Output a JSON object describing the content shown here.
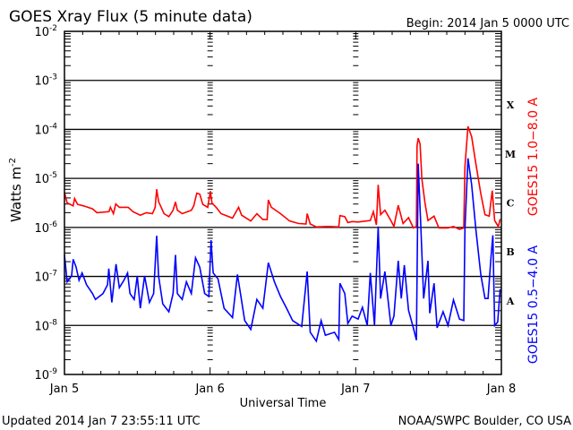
{
  "chart_data": {
    "type": "line",
    "title": "GOES Xray Flux (5 minute data)",
    "begin_label": "Begin:  2014 Jan 5 0000 UTC",
    "xlabel": "Universal Time",
    "ylabel": "Watts m",
    "ylabel_sup": "-2",
    "x_unit": "hours since 2014 Jan 5 00:00 UTC",
    "xlim": [
      0,
      72
    ],
    "ylim_log10": [
      -9,
      -2
    ],
    "y_scale": "log",
    "grid": "horizontal at each decade from 1e-8 to 1e-3",
    "x_ticks": [
      {
        "hour": 0,
        "label": "Jan 5"
      },
      {
        "hour": 24,
        "label": "Jan 6"
      },
      {
        "hour": 48,
        "label": "Jan 7"
      },
      {
        "hour": 72,
        "label": "Jan 8"
      }
    ],
    "y_ticks": [
      {
        "exp": -2,
        "base": "10",
        "sup": "-2"
      },
      {
        "exp": -3,
        "base": "10",
        "sup": "-3"
      },
      {
        "exp": -4,
        "base": "10",
        "sup": "-4"
      },
      {
        "exp": -5,
        "base": "10",
        "sup": "-5"
      },
      {
        "exp": -6,
        "base": "10",
        "sup": "-6"
      },
      {
        "exp": -7,
        "base": "10",
        "sup": "-7"
      },
      {
        "exp": -8,
        "base": "10",
        "sup": "-8"
      },
      {
        "exp": -9,
        "base": "10",
        "sup": "-9"
      }
    ],
    "flare_classes": [
      {
        "label": "X",
        "exp": -3.5
      },
      {
        "label": "M",
        "exp": -4.5
      },
      {
        "label": "C",
        "exp": -5.5
      },
      {
        "label": "B",
        "exp": -6.5
      },
      {
        "label": "A",
        "exp": -7.5
      }
    ],
    "series": [
      {
        "name": "GOES15 1.0-8.0 A",
        "label": "GOES15 1.0−8.0 A",
        "color": "#ff0000",
        "points_hour_log10flux": [
          [
            0,
            -5.29
          ],
          [
            0.44,
            -5.5
          ],
          [
            1.43,
            -5.56
          ],
          [
            1.67,
            -5.41
          ],
          [
            2.16,
            -5.53
          ],
          [
            3.15,
            -5.56
          ],
          [
            4.62,
            -5.62
          ],
          [
            5.36,
            -5.7
          ],
          [
            7.33,
            -5.68
          ],
          [
            7.57,
            -5.59
          ],
          [
            8.07,
            -5.72
          ],
          [
            8.46,
            -5.52
          ],
          [
            9.05,
            -5.59
          ],
          [
            10.5,
            -5.59
          ],
          [
            11.3,
            -5.68
          ],
          [
            12.5,
            -5.75
          ],
          [
            13.5,
            -5.7
          ],
          [
            14.5,
            -5.72
          ],
          [
            14.95,
            -5.59
          ],
          [
            15.2,
            -5.22
          ],
          [
            15.5,
            -5.47
          ],
          [
            16.4,
            -5.72
          ],
          [
            17.2,
            -5.78
          ],
          [
            17.9,
            -5.65
          ],
          [
            18.3,
            -5.48
          ],
          [
            18.6,
            -5.65
          ],
          [
            19.4,
            -5.72
          ],
          [
            20.9,
            -5.65
          ],
          [
            21.3,
            -5.56
          ],
          [
            21.8,
            -5.3
          ],
          [
            22.3,
            -5.32
          ],
          [
            22.8,
            -5.53
          ],
          [
            23.6,
            -5.59
          ],
          [
            24.05,
            -5.26
          ],
          [
            24.3,
            -5.5
          ],
          [
            25.0,
            -5.59
          ],
          [
            25.8,
            -5.72
          ],
          [
            27.7,
            -5.81
          ],
          [
            28.7,
            -5.59
          ],
          [
            29.2,
            -5.75
          ],
          [
            30.7,
            -5.87
          ],
          [
            31.7,
            -5.72
          ],
          [
            32.7,
            -5.84
          ],
          [
            33.4,
            -5.84
          ],
          [
            33.6,
            -5.44
          ],
          [
            34.1,
            -5.59
          ],
          [
            35.6,
            -5.72
          ],
          [
            37.1,
            -5.87
          ],
          [
            38.6,
            -5.92
          ],
          [
            39.8,
            -5.93
          ],
          [
            40.0,
            -5.72
          ],
          [
            40.5,
            -5.93
          ],
          [
            41.5,
            -5.99
          ],
          [
            43.5,
            -5.98
          ],
          [
            45.2,
            -5.99
          ],
          [
            45.4,
            -5.76
          ],
          [
            46.2,
            -5.78
          ],
          [
            46.7,
            -5.9
          ],
          [
            47.4,
            -5.88
          ],
          [
            48.4,
            -5.89
          ],
          [
            50.4,
            -5.86
          ],
          [
            50.9,
            -5.68
          ],
          [
            51.4,
            -5.95
          ],
          [
            51.7,
            -5.13
          ],
          [
            52.1,
            -5.74
          ],
          [
            52.8,
            -5.65
          ],
          [
            53.8,
            -5.86
          ],
          [
            54.3,
            -5.98
          ],
          [
            55.0,
            -5.55
          ],
          [
            55.8,
            -5.92
          ],
          [
            56.7,
            -5.8
          ],
          [
            57.5,
            -6.01
          ],
          [
            58.0,
            -5.98
          ],
          [
            58.1,
            -4.34
          ],
          [
            58.3,
            -4.18
          ],
          [
            58.6,
            -4.3
          ],
          [
            58.9,
            -5.01
          ],
          [
            59.4,
            -5.49
          ],
          [
            59.9,
            -5.86
          ],
          [
            60.9,
            -5.77
          ],
          [
            61.7,
            -6.01
          ],
          [
            63.2,
            -6.01
          ],
          [
            64.1,
            -5.98
          ],
          [
            65.1,
            -6.04
          ],
          [
            65.8,
            -6.01
          ],
          [
            66.0,
            -4.76
          ],
          [
            66.5,
            -3.94
          ],
          [
            67.1,
            -4.15
          ],
          [
            67.8,
            -4.7
          ],
          [
            68.6,
            -5.31
          ],
          [
            69.3,
            -5.74
          ],
          [
            70.0,
            -5.77
          ],
          [
            70.5,
            -5.25
          ],
          [
            70.9,
            -5.86
          ],
          [
            71.5,
            -5.98
          ],
          [
            71.8,
            -5.83
          ]
        ]
      },
      {
        "name": "GOES15 0.5-4.0 A",
        "label": "GOES15 0.5−4.0 A",
        "color": "#0000ff",
        "points_hour_log10flux": [
          [
            0,
            -6.56
          ],
          [
            0.44,
            -7.11
          ],
          [
            1.18,
            -6.99
          ],
          [
            1.43,
            -6.65
          ],
          [
            1.92,
            -6.81
          ],
          [
            2.41,
            -7.08
          ],
          [
            2.9,
            -6.93
          ],
          [
            3.64,
            -7.17
          ],
          [
            4.62,
            -7.35
          ],
          [
            5.1,
            -7.47
          ],
          [
            6.35,
            -7.35
          ],
          [
            7.1,
            -7.17
          ],
          [
            7.3,
            -6.84
          ],
          [
            7.8,
            -7.53
          ],
          [
            8.5,
            -6.75
          ],
          [
            9.05,
            -7.23
          ],
          [
            9.8,
            -7.08
          ],
          [
            10.4,
            -6.93
          ],
          [
            10.8,
            -7.35
          ],
          [
            11.5,
            -7.47
          ],
          [
            12.0,
            -6.99
          ],
          [
            12.5,
            -7.65
          ],
          [
            13.2,
            -6.99
          ],
          [
            14.0,
            -7.53
          ],
          [
            14.7,
            -7.35
          ],
          [
            15.2,
            -6.17
          ],
          [
            15.5,
            -6.99
          ],
          [
            16.2,
            -7.56
          ],
          [
            17.2,
            -7.72
          ],
          [
            17.9,
            -7.35
          ],
          [
            18.3,
            -6.56
          ],
          [
            18.6,
            -7.35
          ],
          [
            19.4,
            -7.47
          ],
          [
            20.1,
            -7.11
          ],
          [
            20.9,
            -7.35
          ],
          [
            21.6,
            -6.62
          ],
          [
            22.3,
            -6.81
          ],
          [
            23.1,
            -7.35
          ],
          [
            23.8,
            -7.41
          ],
          [
            24.15,
            -6.26
          ],
          [
            24.5,
            -6.93
          ],
          [
            25.3,
            -7.05
          ],
          [
            26.3,
            -7.65
          ],
          [
            27.7,
            -7.84
          ],
          [
            28.5,
            -6.96
          ],
          [
            29.0,
            -7.35
          ],
          [
            29.7,
            -7.9
          ],
          [
            30.7,
            -8.08
          ],
          [
            31.7,
            -7.47
          ],
          [
            32.7,
            -7.65
          ],
          [
            33.6,
            -6.72
          ],
          [
            34.6,
            -7.11
          ],
          [
            35.6,
            -7.41
          ],
          [
            36.6,
            -7.65
          ],
          [
            37.6,
            -7.9
          ],
          [
            39.1,
            -8.02
          ],
          [
            40.0,
            -6.9
          ],
          [
            40.5,
            -8.14
          ],
          [
            41.5,
            -8.32
          ],
          [
            42.3,
            -7.9
          ],
          [
            43.0,
            -8.2
          ],
          [
            44.5,
            -8.14
          ],
          [
            45.2,
            -8.29
          ],
          [
            45.4,
            -7.14
          ],
          [
            46.2,
            -7.35
          ],
          [
            46.7,
            -7.96
          ],
          [
            47.4,
            -7.81
          ],
          [
            48.4,
            -7.87
          ],
          [
            49.1,
            -7.63
          ],
          [
            49.9,
            -8.0
          ],
          [
            50.4,
            -6.93
          ],
          [
            51.1,
            -8.0
          ],
          [
            51.7,
            -5.98
          ],
          [
            52.1,
            -7.45
          ],
          [
            52.8,
            -6.9
          ],
          [
            53.8,
            -8.0
          ],
          [
            54.3,
            -7.81
          ],
          [
            55.0,
            -6.68
          ],
          [
            55.5,
            -7.45
          ],
          [
            56.0,
            -6.77
          ],
          [
            56.7,
            -7.69
          ],
          [
            57.5,
            -8.05
          ],
          [
            58.0,
            -8.3
          ],
          [
            58.3,
            -4.7
          ],
          [
            58.7,
            -5.92
          ],
          [
            59.2,
            -7.45
          ],
          [
            59.9,
            -6.68
          ],
          [
            60.2,
            -7.75
          ],
          [
            60.9,
            -7.14
          ],
          [
            61.4,
            -8.05
          ],
          [
            62.4,
            -7.72
          ],
          [
            63.2,
            -8.0
          ],
          [
            64.1,
            -7.48
          ],
          [
            65.1,
            -7.87
          ],
          [
            65.8,
            -7.9
          ],
          [
            66.0,
            -6.04
          ],
          [
            66.5,
            -4.59
          ],
          [
            67.1,
            -5.13
          ],
          [
            67.8,
            -6.04
          ],
          [
            68.6,
            -6.96
          ],
          [
            69.3,
            -7.45
          ],
          [
            69.8,
            -7.45
          ],
          [
            70.3,
            -6.59
          ],
          [
            70.6,
            -6.16
          ],
          [
            70.9,
            -8.0
          ],
          [
            71.4,
            -7.93
          ],
          [
            71.8,
            -7.26
          ]
        ]
      }
    ]
  },
  "footer": {
    "updated": "Updated 2014 Jan  7 23:55:11 UTC",
    "credit": "NOAA/SWPC Boulder, CO USA"
  }
}
